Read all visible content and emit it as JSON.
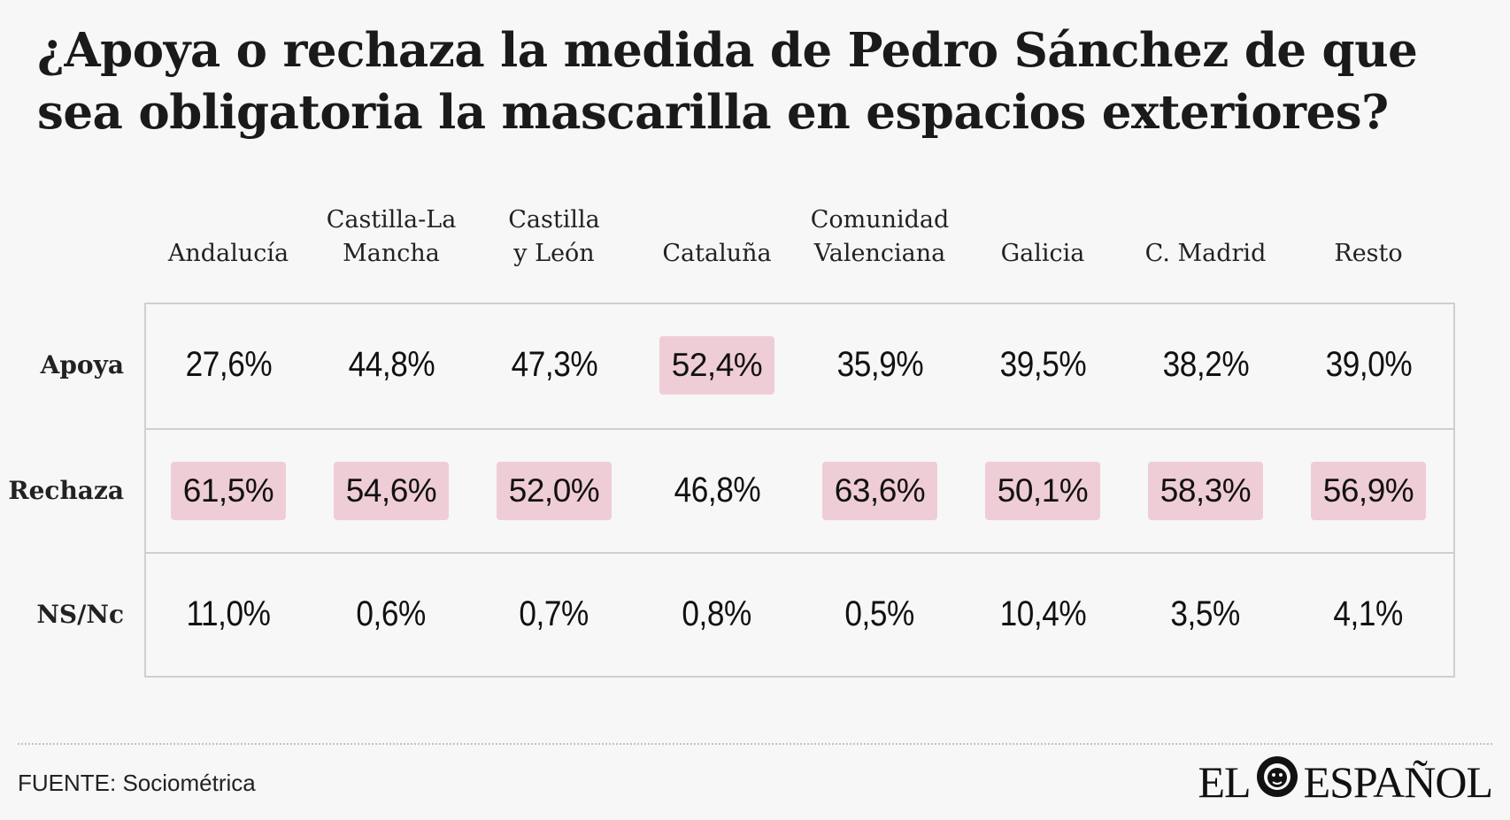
{
  "title": "¿Apoya o rechaza la medida de Pedro Sánchez de que sea obligatoria la mascarilla en espacios exteriores?",
  "colors": {
    "highlight": "#efcdd6",
    "background": "#f7f7f7",
    "border": "#cfcfcf"
  },
  "chart_data": {
    "type": "table",
    "columns": [
      "Andalucía",
      "Castilla-La\nMancha",
      "Castilla\ny León",
      "Cataluña",
      "Comunidad\nValenciana",
      "Galicia",
      "C. Madrid",
      "Resto"
    ],
    "rows": [
      {
        "label": "Apoya",
        "values": [
          "27,6%",
          "44,8%",
          "47,3%",
          "52,4%",
          "35,9%",
          "39,5%",
          "38,2%",
          "39,0%"
        ],
        "highlight": [
          false,
          false,
          false,
          true,
          false,
          false,
          false,
          false
        ]
      },
      {
        "label": "Rechaza",
        "values": [
          "61,5%",
          "54,6%",
          "52,0%",
          "46,8%",
          "63,6%",
          "50,1%",
          "58,3%",
          "56,9%"
        ],
        "highlight": [
          true,
          true,
          true,
          false,
          true,
          true,
          true,
          true
        ]
      },
      {
        "label": "NS/Nc",
        "values": [
          "11,0%",
          "0,6%",
          "0,7%",
          "0,8%",
          "0,5%",
          "10,4%",
          "3,5%",
          "4,1%"
        ],
        "highlight": [
          false,
          false,
          false,
          false,
          false,
          false,
          false,
          false
        ]
      }
    ]
  },
  "footer": {
    "source": "FUENTE: Sociométrica"
  },
  "logo": {
    "left": "EL",
    "right": "ESPAÑOL",
    "mark_icon": "lion-head-icon"
  }
}
